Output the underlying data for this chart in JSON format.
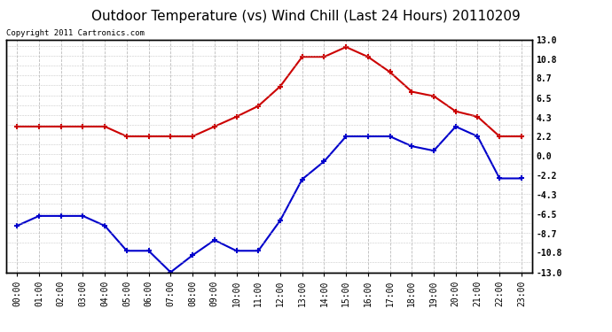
{
  "title": "Outdoor Temperature (vs) Wind Chill (Last 24 Hours) 20110209",
  "copyright": "Copyright 2011 Cartronics.com",
  "hours": [
    "00:00",
    "01:00",
    "02:00",
    "03:00",
    "04:00",
    "05:00",
    "06:00",
    "07:00",
    "08:00",
    "09:00",
    "10:00",
    "11:00",
    "12:00",
    "13:00",
    "14:00",
    "15:00",
    "16:00",
    "17:00",
    "18:00",
    "19:00",
    "20:00",
    "21:00",
    "22:00",
    "23:00"
  ],
  "temp": [
    3.3,
    3.3,
    3.3,
    3.3,
    3.3,
    2.2,
    2.2,
    2.2,
    2.2,
    3.3,
    4.4,
    5.6,
    7.8,
    11.1,
    11.1,
    12.2,
    11.1,
    9.4,
    7.2,
    6.7,
    5.0,
    4.4,
    2.2,
    2.2
  ],
  "wind_chill": [
    -7.8,
    -6.7,
    -6.7,
    -6.7,
    -7.8,
    -10.6,
    -10.6,
    -13.0,
    -11.1,
    -9.4,
    -10.6,
    -10.6,
    -7.2,
    -2.6,
    -0.6,
    2.2,
    2.2,
    2.2,
    1.1,
    0.6,
    3.3,
    2.2,
    -2.5,
    -2.5
  ],
  "temp_color": "#cc0000",
  "wind_chill_color": "#0000cc",
  "ylim": [
    -13.0,
    13.0
  ],
  "yticks": [
    -13.0,
    -10.8,
    -8.7,
    -6.5,
    -4.3,
    -2.2,
    0.0,
    2.2,
    4.3,
    6.5,
    8.7,
    10.8,
    13.0
  ],
  "bg_color": "#ffffff",
  "grid_color": "#bbbbbb",
  "title_fontsize": 11,
  "copyright_fontsize": 6.5,
  "tick_fontsize": 7
}
